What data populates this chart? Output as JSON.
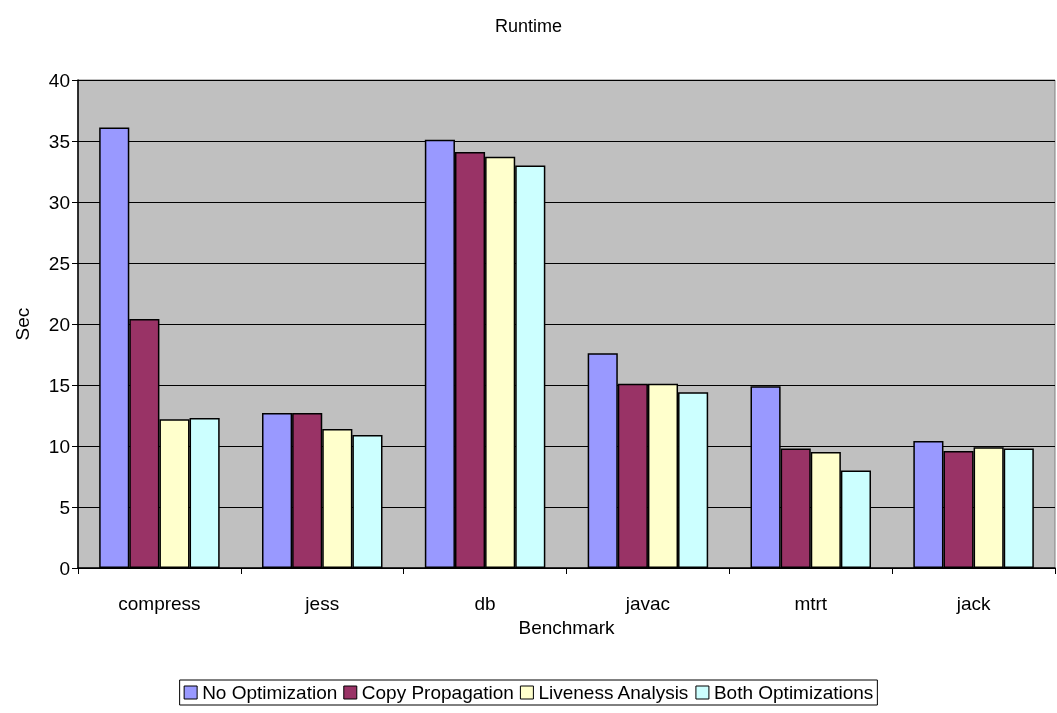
{
  "chart_data": {
    "type": "bar",
    "title": "Runtime",
    "xlabel": "Benchmark",
    "ylabel": "Sec",
    "categories": [
      "compress",
      "jess",
      "db",
      "javac",
      "mtrt",
      "jack"
    ],
    "series": [
      {
        "name": "No Optimization",
        "color": "#9999ff",
        "values": [
          36.1,
          12.7,
          35.1,
          17.6,
          14.9,
          10.4
        ]
      },
      {
        "name": "Copy Propagation",
        "color": "#993366",
        "values": [
          20.4,
          12.7,
          34.1,
          15.1,
          9.8,
          9.6
        ]
      },
      {
        "name": "Liveness Analysis",
        "color": "#ffffcc",
        "values": [
          12.2,
          11.4,
          33.7,
          15.1,
          9.5,
          9.9
        ]
      },
      {
        "name": "Both Optimizations",
        "color": "#ccffff",
        "values": [
          12.3,
          10.9,
          33.0,
          14.4,
          8.0,
          9.8
        ]
      }
    ],
    "ylim": [
      0,
      40
    ],
    "yticks": [
      0,
      5,
      10,
      15,
      20,
      25,
      30,
      35,
      40
    ],
    "grid": "y",
    "legend": "bottom"
  }
}
